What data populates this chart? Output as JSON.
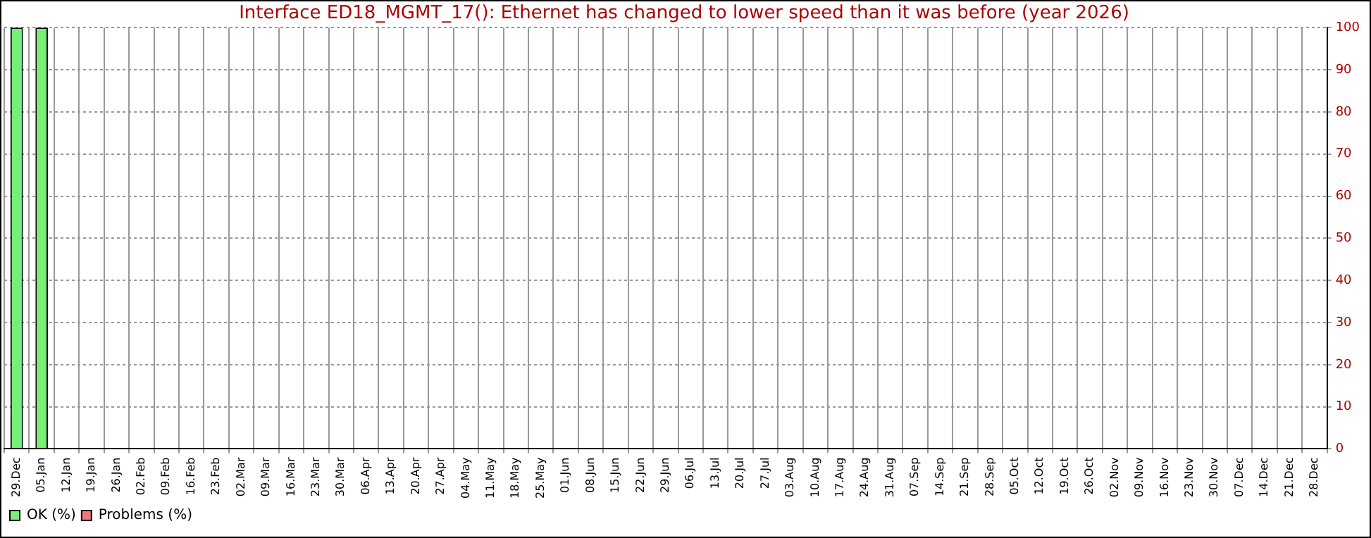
{
  "chart_data": {
    "type": "bar",
    "title": "Interface ED18_MGMT_17(): Ethernet has changed to lower speed than it was before (year 2026)",
    "categories": [
      "29.Dec",
      "05.Jan",
      "12.Jan",
      "19.Jan",
      "26.Jan",
      "02.Feb",
      "09.Feb",
      "16.Feb",
      "23.Feb",
      "02.Mar",
      "09.Mar",
      "16.Mar",
      "23.Mar",
      "30.Mar",
      "06.Apr",
      "13.Apr",
      "20.Apr",
      "27.Apr",
      "04.May",
      "11.May",
      "18.May",
      "25.May",
      "01.Jun",
      "08.Jun",
      "15.Jun",
      "22.Jun",
      "29.Jun",
      "06.Jul",
      "13.Jul",
      "20.Jul",
      "27.Jul",
      "03.Aug",
      "10.Aug",
      "17.Aug",
      "24.Aug",
      "31.Aug",
      "07.Sep",
      "14.Sep",
      "21.Sep",
      "28.Sep",
      "05.Oct",
      "12.Oct",
      "19.Oct",
      "26.Oct",
      "02.Nov",
      "09.Nov",
      "16.Nov",
      "23.Nov",
      "30.Nov",
      "07.Dec",
      "14.Dec",
      "21.Dec",
      "28.Dec"
    ],
    "series": [
      {
        "name": "OK (%)",
        "color": "#77ee77",
        "values": [
          100,
          100,
          null,
          null,
          null,
          null,
          null,
          null,
          null,
          null,
          null,
          null,
          null,
          null,
          null,
          null,
          null,
          null,
          null,
          null,
          null,
          null,
          null,
          null,
          null,
          null,
          null,
          null,
          null,
          null,
          null,
          null,
          null,
          null,
          null,
          null,
          null,
          null,
          null,
          null,
          null,
          null,
          null,
          null,
          null,
          null,
          null,
          null,
          null,
          null,
          null,
          null,
          null
        ]
      },
      {
        "name": "Problems (%)",
        "color": "#ee7777",
        "values": [
          0,
          0,
          null,
          null,
          null,
          null,
          null,
          null,
          null,
          null,
          null,
          null,
          null,
          null,
          null,
          null,
          null,
          null,
          null,
          null,
          null,
          null,
          null,
          null,
          null,
          null,
          null,
          null,
          null,
          null,
          null,
          null,
          null,
          null,
          null,
          null,
          null,
          null,
          null,
          null,
          null,
          null,
          null,
          null,
          null,
          null,
          null,
          null,
          null,
          null,
          null,
          null,
          null
        ]
      }
    ],
    "stacked": true,
    "ylim": [
      0,
      100
    ],
    "yticks": [
      0,
      10,
      20,
      30,
      40,
      50,
      60,
      70,
      80,
      90,
      100
    ],
    "grid": true,
    "legend": "bottom left"
  }
}
